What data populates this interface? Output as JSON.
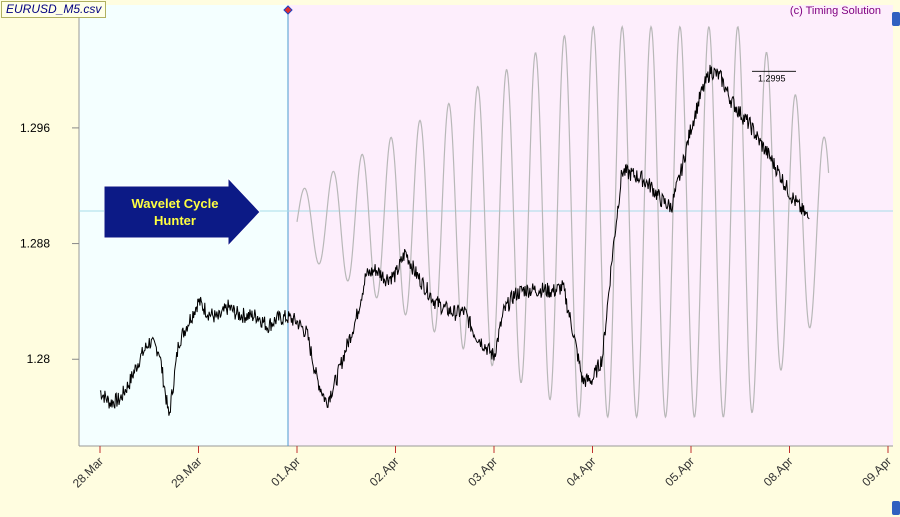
{
  "window": {
    "file_label": "EURUSD_M5.csv",
    "copyright": "(c) Timing Solution"
  },
  "annotation": {
    "callout_text": "Wavelet Cycle Hunter"
  },
  "colors": {
    "history_bg": "#f4ffff",
    "forecast_bg": "#fdeefc",
    "price_line": "#000000",
    "wavelet_line": "#b8b8b8",
    "divider_line": "#4a9bcf",
    "callout_fill": "#0c1a86"
  },
  "chart_data": {
    "type": "line",
    "title": "",
    "xlabel": "",
    "ylabel": "",
    "x_tick_labels": [
      "28.Mar",
      "29.Mar",
      "01.Apr",
      "02.Apr",
      "03.Apr",
      "04.Apr",
      "05.Apr",
      "08.Apr",
      "09.Apr"
    ],
    "y_tick_labels": [
      "1.28",
      "1.288",
      "1.296"
    ],
    "y_ticks": [
      1.28,
      1.288,
      1.296
    ],
    "ylim": [
      1.274,
      1.3045
    ],
    "grid": false,
    "price_marker_label": "1.2995",
    "series": [
      {
        "key": "price",
        "x_day": [
          0.0,
          0.1,
          0.2,
          0.3,
          0.4,
          0.5,
          0.6,
          0.7,
          0.8,
          0.9,
          1.0,
          1.1,
          1.2,
          1.3,
          1.4,
          1.5,
          1.6,
          1.7,
          1.8,
          1.9,
          2.0,
          2.1,
          2.2,
          2.3,
          2.4,
          2.5,
          2.6,
          2.7,
          2.8,
          2.9,
          3.0,
          3.1,
          3.2,
          3.3,
          3.4,
          3.5,
          3.6,
          3.7,
          3.8,
          3.9,
          4.0,
          4.1,
          4.2,
          4.3,
          4.4,
          4.5,
          4.6,
          4.7,
          4.8,
          4.9,
          5.0,
          5.1,
          5.2,
          5.3,
          5.4,
          5.5,
          5.6,
          5.7,
          5.8,
          5.9,
          6.0,
          6.1,
          6.2,
          6.3,
          6.4,
          6.5,
          6.6,
          6.7,
          6.8,
          6.9,
          7.0,
          7.1,
          7.2
        ],
        "values": [
          1.2778,
          1.277,
          1.2772,
          1.2784,
          1.28,
          1.2812,
          1.2806,
          1.276,
          1.2812,
          1.2826,
          1.284,
          1.2832,
          1.2828,
          1.2836,
          1.2831,
          1.283,
          1.283,
          1.2823,
          1.2828,
          1.2829,
          1.2826,
          1.2818,
          1.2787,
          1.277,
          1.2786,
          1.2808,
          1.2828,
          1.2858,
          1.2862,
          1.2856,
          1.2858,
          1.2874,
          1.286,
          1.285,
          1.284,
          1.2835,
          1.2832,
          1.2833,
          1.2818,
          1.281,
          1.2802,
          1.2833,
          1.2844,
          1.2848,
          1.2848,
          1.2848,
          1.2847,
          1.285,
          1.282,
          1.2785,
          1.2786,
          1.2801,
          1.2871,
          1.293,
          1.2928,
          1.2925,
          1.2919,
          1.291,
          1.2905,
          1.293,
          1.296,
          1.2983,
          1.3,
          1.2995,
          1.298,
          1.297,
          1.2962,
          1.295,
          1.294,
          1.2928,
          1.2915,
          1.2905,
          1.2897
        ]
      },
      {
        "key": "wavelet_forecast",
        "note_free_shape": "oscillating projection",
        "start_x_day": 2.0,
        "end_x_day": 7.4,
        "center_value": 1.2895,
        "peak_amplitude": 0.0135
      }
    ]
  }
}
